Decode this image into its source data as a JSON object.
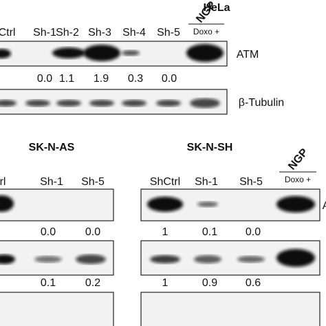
{
  "hela": {
    "title": "HeLa",
    "lanes": [
      "Ctrl",
      "Sh-1",
      "Sh-2",
      "Sh-3",
      "Sh-4",
      "Sh-5"
    ],
    "ngp": "NGP",
    "doxo": "Doxo +",
    "rows": [
      {
        "label": "ATM",
        "quant": [
          "0.0",
          "1.1",
          "1.9",
          "0.3",
          "0.0"
        ]
      },
      {
        "label": "β-Tubulin"
      }
    ]
  },
  "sknas": {
    "title": "SK-N-AS",
    "lanes": [
      "rl",
      "Sh-1",
      "Sh-5"
    ],
    "quant": [
      [
        "0.0",
        "0.0"
      ],
      [
        "0.1",
        "0.2"
      ]
    ]
  },
  "sknsh": {
    "title": "SK-N-SH",
    "lanes": [
      "ShCtrl",
      "Sh-1",
      "Sh-5"
    ],
    "ngp": "NGP",
    "doxo": "Doxo +",
    "row_label": "A",
    "quant": [
      [
        "1",
        "0.1",
        "0.0"
      ],
      [
        "1",
        "0.9",
        "0.6"
      ]
    ]
  }
}
